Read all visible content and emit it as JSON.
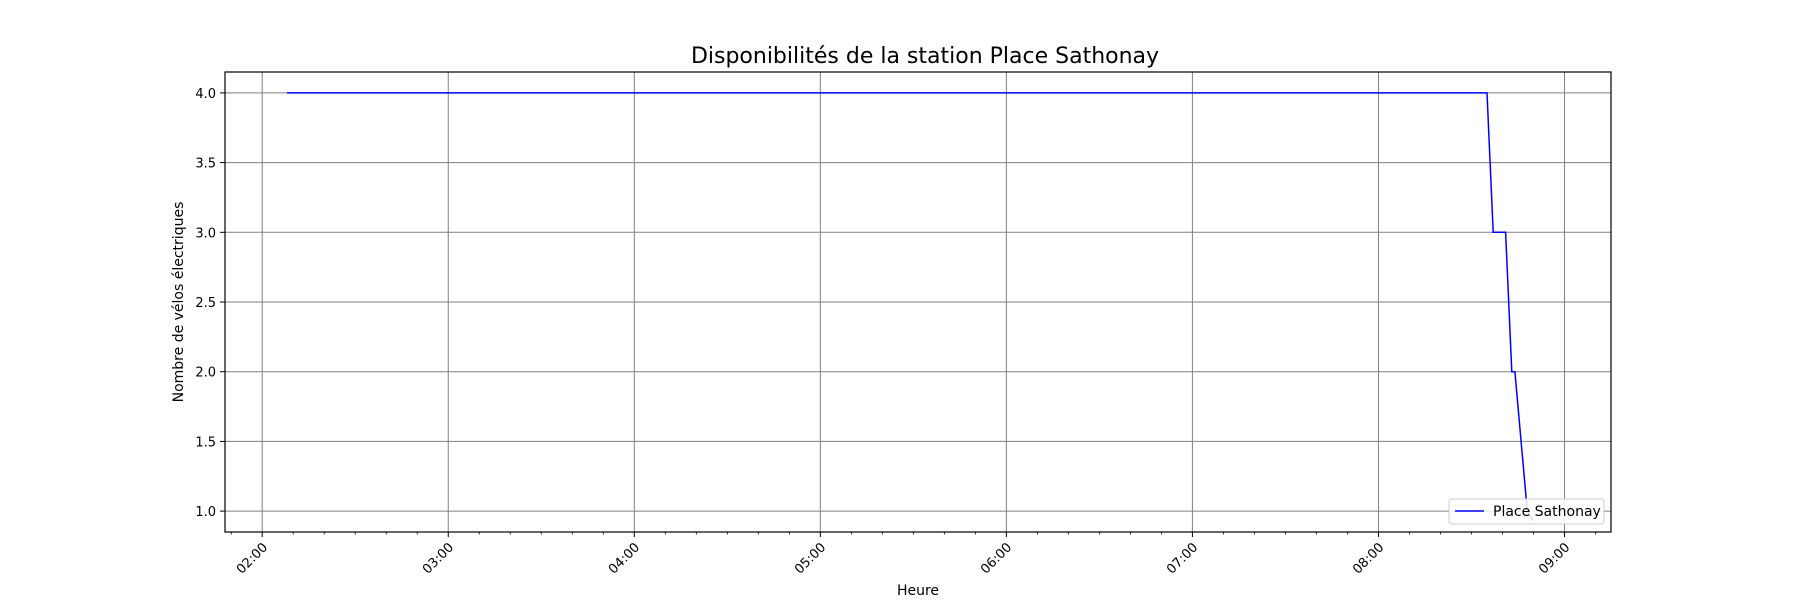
{
  "chart_data": {
    "type": "line",
    "title": "Disponibilités de la station Place Sathonay",
    "xlabel": "Heure",
    "ylabel": "Nombre de vélos électriques",
    "xlim": [
      "01:48",
      "09:15"
    ],
    "ylim": [
      0.85,
      4.15
    ],
    "x_ticks": [
      "02:00",
      "03:00",
      "04:00",
      "05:00",
      "06:00",
      "07:00",
      "08:00",
      "09:00"
    ],
    "y_ticks": [
      "1.0",
      "1.5",
      "2.0",
      "2.5",
      "3.0",
      "3.5",
      "4.0"
    ],
    "grid": true,
    "legend_position": "lower right",
    "series": [
      {
        "name": "Place Sathonay",
        "color": "#0000ff",
        "x": [
          "02:08",
          "08:35",
          "08:37",
          "08:41",
          "08:43",
          "08:44",
          "08:46",
          "08:48",
          "08:50"
        ],
        "y": [
          4,
          4,
          3,
          3,
          2,
          2,
          1.5,
          1.0,
          0.93
        ]
      }
    ]
  }
}
